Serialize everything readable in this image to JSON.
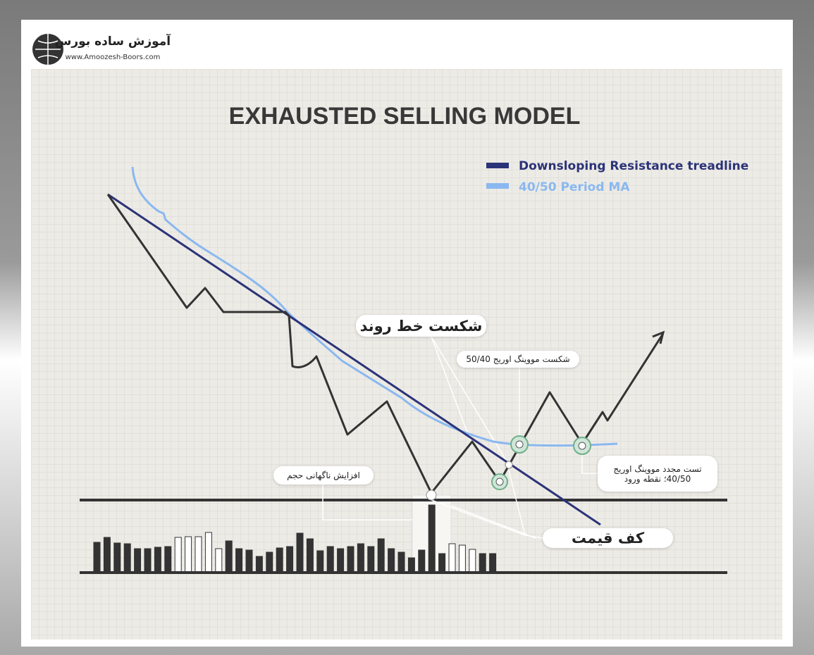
{
  "logo": {
    "name": "آموزش ساده بورس",
    "url": "www.Amoozesh-Boors.com"
  },
  "title": "EXHAUSTED SELLING MODEL",
  "legend": [
    {
      "label": "Downsloping Resistance treadline",
      "color": "#2b3378"
    },
    {
      "label": "40/50 Period MA",
      "color": "#8ab8f0"
    }
  ],
  "annotations": {
    "trendline_break": "شکست خط روند",
    "ma_break": "شکست مووینگ اوریج 50/40",
    "volume_spike": "افزایش ناگهانی حجم",
    "retest_line1": "تست مجدد مووینگ اوریج",
    "retest_line2": "40/50؛ نقطه ورود",
    "price_floor": "کف قیمت"
  }
}
